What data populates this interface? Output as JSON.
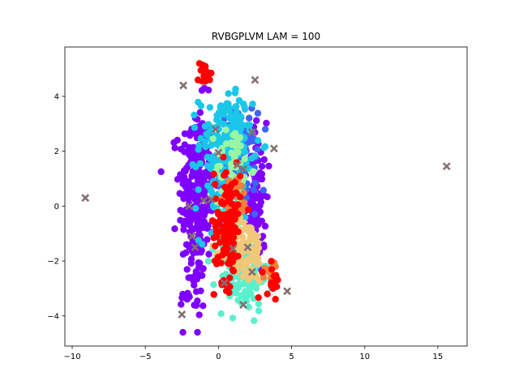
{
  "chart_data": {
    "type": "scatter",
    "title": "RVBGPLVM LAM = 100",
    "xlabel": "",
    "ylabel": "",
    "xlim": [
      -10.5,
      17.0
    ],
    "ylim": [
      -5.1,
      5.8
    ],
    "xticks": [
      -10,
      -5,
      0,
      5,
      10,
      15
    ],
    "yticks": [
      -4,
      -2,
      0,
      2,
      4
    ],
    "xtick_labels": [
      "−10",
      "−5",
      "0",
      "5",
      "10",
      "15"
    ],
    "ytick_labels": [
      "−4",
      "−2",
      "0",
      "2",
      "4"
    ],
    "grid": false,
    "legend": "none",
    "colors": {
      "purple": "#7f00ff",
      "blue": "#3e64f7",
      "cyan": "#1ac7e8",
      "aqua": "#5af0cd",
      "lightgreen": "#9af5a3",
      "tan": "#f0c878",
      "orange": "#f57f3a",
      "red": "#ff0000",
      "cross": "#857070"
    },
    "clusters": [
      {
        "color": "purple",
        "cx": -1.5,
        "cy": 0.5,
        "sx": 0.6,
        "sy": 1.6,
        "n": 260
      },
      {
        "color": "purple",
        "cx": 2.5,
        "cy": 0.3,
        "sx": 0.4,
        "sy": 1.4,
        "n": 110
      },
      {
        "color": "purple",
        "cx": -1.8,
        "cy": -3.2,
        "sx": 0.4,
        "sy": 0.5,
        "n": 25
      },
      {
        "color": "blue",
        "cx": 1.4,
        "cy": 1.6,
        "sx": 0.6,
        "sy": 0.9,
        "n": 160
      },
      {
        "color": "cyan",
        "cx": 0.5,
        "cy": 2.3,
        "sx": 0.9,
        "sy": 0.9,
        "n": 170
      },
      {
        "color": "cyan",
        "cx": 0.3,
        "cy": 0.3,
        "sx": 0.8,
        "sy": 0.8,
        "n": 40
      },
      {
        "color": "aqua",
        "cx": 1.6,
        "cy": -2.6,
        "sx": 0.9,
        "sy": 0.6,
        "n": 110
      },
      {
        "color": "aqua",
        "cx": 0.6,
        "cy": -0.8,
        "sx": 0.4,
        "sy": 0.8,
        "n": 30
      },
      {
        "color": "lightgreen",
        "cx": 1.0,
        "cy": 1.4,
        "sx": 0.6,
        "sy": 0.8,
        "n": 60
      },
      {
        "color": "tan",
        "cx": 1.8,
        "cy": -1.6,
        "sx": 0.7,
        "sy": 0.6,
        "n": 110
      },
      {
        "color": "orange",
        "cx": 1.2,
        "cy": 0.3,
        "sx": 0.4,
        "sy": 0.4,
        "n": 40
      },
      {
        "color": "orange",
        "cx": 3.6,
        "cy": -2.4,
        "sx": 0.3,
        "sy": 0.2,
        "n": 12
      },
      {
        "color": "red",
        "cx": 0.6,
        "cy": -0.6,
        "sx": 0.45,
        "sy": 1.1,
        "n": 130
      },
      {
        "color": "red",
        "cx": 3.7,
        "cy": -2.7,
        "sx": 0.3,
        "sy": 0.3,
        "n": 15
      }
    ],
    "red_top_points": [
      [
        -1.3,
        5.2
      ],
      [
        -1.1,
        5.15
      ],
      [
        -0.9,
        5.1
      ],
      [
        -1.2,
        4.95
      ],
      [
        -0.8,
        4.9
      ],
      [
        -1.0,
        4.75
      ],
      [
        -0.7,
        4.7
      ],
      [
        -1.4,
        4.6
      ],
      [
        -0.6,
        4.6
      ],
      [
        -1.1,
        4.55
      ],
      [
        -0.5,
        4.85
      ],
      [
        -0.9,
        4.55
      ]
    ],
    "crosses": [
      [
        -9.1,
        0.3
      ],
      [
        -2.4,
        4.4
      ],
      [
        2.5,
        4.6
      ],
      [
        15.6,
        1.45
      ],
      [
        3.8,
        2.1
      ],
      [
        -0.2,
        2.8
      ],
      [
        2.3,
        2.7
      ],
      [
        0.0,
        1.95
      ],
      [
        1.3,
        1.5
      ],
      [
        1.7,
        1.35
      ],
      [
        -0.5,
        0.25
      ],
      [
        -1.0,
        0.2
      ],
      [
        -2.0,
        0.0
      ],
      [
        -1.8,
        -1.1
      ],
      [
        -1.6,
        -1.5
      ],
      [
        1.0,
        -1.55
      ],
      [
        2.0,
        -1.5
      ],
      [
        2.3,
        -2.4
      ],
      [
        0.4,
        -2.8
      ],
      [
        4.7,
        -3.1
      ],
      [
        1.7,
        -3.6
      ],
      [
        -2.5,
        -3.95
      ]
    ]
  }
}
